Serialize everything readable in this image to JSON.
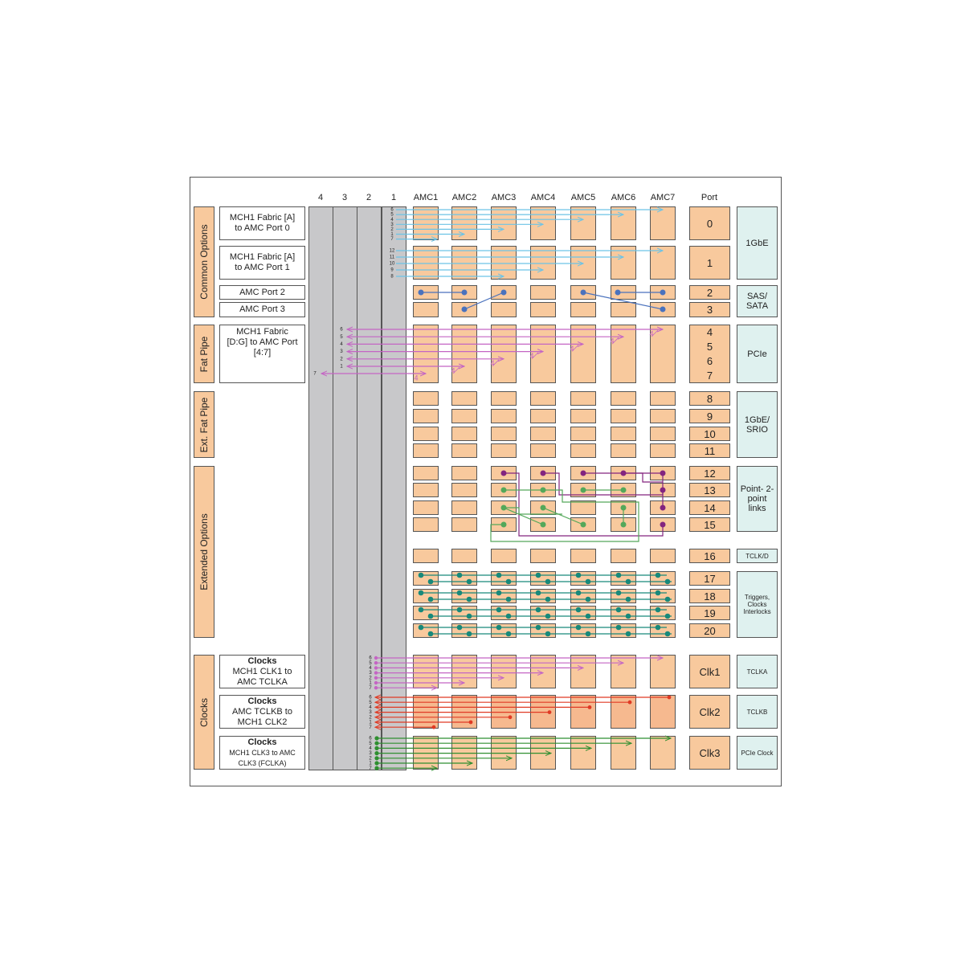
{
  "header": {
    "slots": [
      "4",
      "3",
      "2",
      "1"
    ],
    "amcs": [
      "AMC1",
      "AMC2",
      "AMC3",
      "AMC4",
      "AMC5",
      "AMC6",
      "AMC7"
    ],
    "port": "Port"
  },
  "groups": [
    "Common Options",
    "Fat Pipe",
    "Ext. Fat Pipe",
    "Extended Options",
    "Clocks"
  ],
  "descriptions": [
    {
      "text": "MCH1 Fabric [A] to AMC Port 0"
    },
    {
      "text": "MCH1 Fabric [A] to AMC Port 1"
    },
    {
      "text": "AMC Port 2"
    },
    {
      "text": "AMC Port 3"
    },
    {
      "text": "MCH1 Fabric [D:G] to AMC Port [4:7]"
    },
    {
      "title": "Clocks",
      "text": "MCH1 CLK1 to AMC TCLKA"
    },
    {
      "title": "Clocks",
      "text": "AMC TCLKB to MCH1 CLK2"
    },
    {
      "title": "Clocks",
      "text": "MCH1 CLK3 to AMC CLK3 (FCLKA)"
    }
  ],
  "ports": [
    "0",
    "1",
    "2",
    "3",
    "4",
    "5",
    "6",
    "7",
    "8",
    "9",
    "10",
    "11",
    "12",
    "13",
    "14",
    "15",
    "16",
    "17",
    "18",
    "19",
    "20",
    "Clk1",
    "Clk2",
    "Clk3"
  ],
  "port_types": [
    "1GbE",
    "SAS/ SATA",
    "PCIe",
    "1GbE/ SRIO",
    "Point- 2-point links",
    "TCLK/D",
    "Triggers, Clocks Interlocks",
    "TCLKA",
    "TCLKB",
    "PCIe Clock"
  ],
  "lane_labels": {
    "port0": [
      "6",
      "5",
      "4",
      "3",
      "2",
      "1",
      "7"
    ],
    "port1": [
      "12",
      "11",
      "10",
      "9",
      "8"
    ],
    "fat_pipe": [
      "6",
      "5",
      "4",
      "3",
      "2",
      "1",
      "7"
    ],
    "clk1": [
      "6",
      "5",
      "4",
      "3",
      "2",
      "1",
      "7"
    ],
    "clk2": [
      "6",
      "5",
      "4",
      "3",
      "2",
      "1",
      "7"
    ],
    "clk3": [
      "6",
      "5",
      "4",
      "3",
      "2",
      "1",
      "7"
    ]
  },
  "lane_width": "4"
}
